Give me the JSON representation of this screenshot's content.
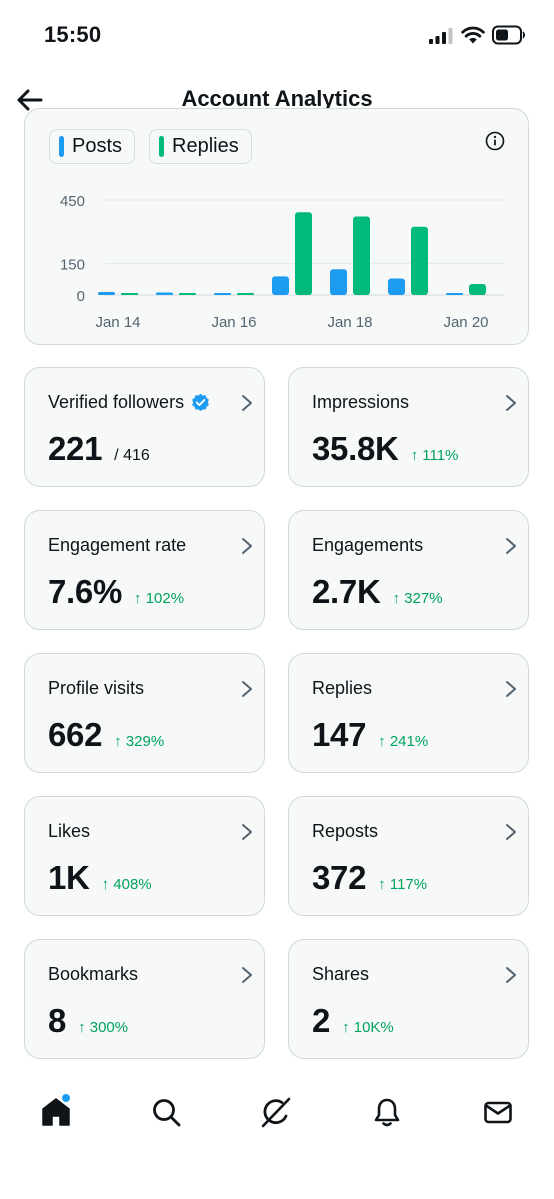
{
  "status_bar": {
    "time": "15:50"
  },
  "header": {
    "title": "Account Analytics"
  },
  "chart_data": {
    "type": "bar",
    "legend": [
      {
        "label": "Posts",
        "color": "#1d9bf0"
      },
      {
        "label": "Replies",
        "color": "#00ba7c"
      }
    ],
    "categories": [
      "Jan 14",
      "Jan 15",
      "Jan 16",
      "Jan 17",
      "Jan 18",
      "Jan 19",
      "Jan 20"
    ],
    "x_tick_labels": [
      "Jan 14",
      "Jan 16",
      "Jan 18",
      "Jan 20"
    ],
    "y_tick_labels": [
      "450",
      "150",
      "0"
    ],
    "y_ticks": [
      450,
      150,
      0
    ],
    "ylim": [
      0,
      450
    ],
    "grid": true,
    "series": [
      {
        "name": "Posts",
        "color": "#1d9bf0",
        "values": [
          14,
          12,
          6,
          88,
          122,
          78,
          8
        ]
      },
      {
        "name": "Replies",
        "color": "#00ba7c",
        "values": [
          2,
          2,
          2,
          392,
          372,
          323,
          52
        ]
      }
    ]
  },
  "stats": [
    {
      "label": "Verified followers",
      "value": "221",
      "sub": "/ 416",
      "change": "",
      "verified": true
    },
    {
      "label": "Impressions",
      "value": "35.8K",
      "sub": "",
      "change": "↑ 111%"
    },
    {
      "label": "Engagement rate",
      "value": "7.6%",
      "sub": "",
      "change": "↑ 102%"
    },
    {
      "label": "Engagements",
      "value": "2.7K",
      "sub": "",
      "change": "↑ 327%"
    },
    {
      "label": "Profile visits",
      "value": "662",
      "sub": "",
      "change": "↑ 329%"
    },
    {
      "label": "Replies",
      "value": "147",
      "sub": "",
      "change": "↑ 241%"
    },
    {
      "label": "Likes",
      "value": "1K",
      "sub": "",
      "change": "↑ 408%"
    },
    {
      "label": "Reposts",
      "value": "372",
      "sub": "",
      "change": "↑ 117%"
    },
    {
      "label": "Bookmarks",
      "value": "8",
      "sub": "",
      "change": "↑ 300%"
    },
    {
      "label": "Shares",
      "value": "2",
      "sub": "",
      "change": "↑ 10K%"
    }
  ],
  "tab_bar": {
    "items": [
      "home-icon",
      "search-icon",
      "grok-icon",
      "bell-icon",
      "mail-icon"
    ],
    "home_badge": true
  },
  "colors": {
    "accent": "#1d9bf0",
    "positive": "#00a35c",
    "card_bg": "#f7f9f9",
    "card_border": "#cfd9de"
  }
}
